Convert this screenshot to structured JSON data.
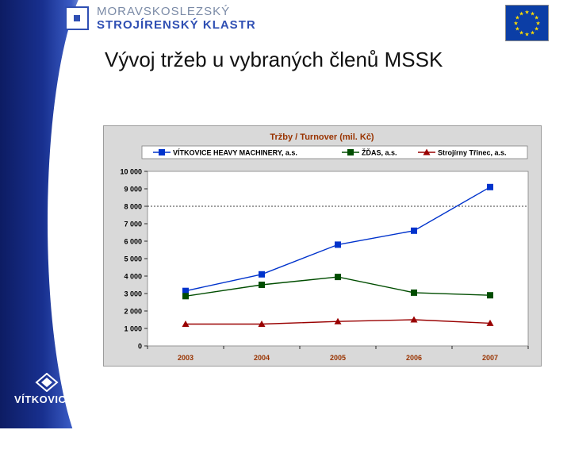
{
  "header": {
    "org_line1": "MORAVSKOSLEZSKÝ",
    "org_line2": "STROJÍRENSKÝ KLASTR",
    "logo_icon": "msk-square-logo-icon",
    "eu_flag_icon": "eu-flag-icon"
  },
  "slide": {
    "title": "Vývoj tržeb u vybraných členů MSSK"
  },
  "footer": {
    "company": "VÍTKOVICE",
    "emblem_icon": "vitkovice-emblem-icon"
  },
  "colors": {
    "series1": "#0033cc",
    "series2": "#004d00",
    "series3": "#990000",
    "plot_bg": "#ffffff",
    "frame_bg": "#d9d9d9",
    "chart_title": "#993300",
    "band_dark": "#0d1c63"
  },
  "chart_data": {
    "type": "line",
    "title": "Tržby / Turnover (mil. Kč)",
    "xlabel": "",
    "ylabel": "",
    "categories": [
      "2003",
      "2004",
      "2005",
      "2006",
      "2007"
    ],
    "ylim": [
      0,
      10000
    ],
    "y_ticks": [
      0,
      1000,
      2000,
      3000,
      4000,
      5000,
      6000,
      7000,
      8000,
      9000,
      10000
    ],
    "y_tick_labels": [
      "0",
      "1 000",
      "2 000",
      "3 000",
      "4 000",
      "5 000",
      "6 000",
      "7 000",
      "8 000",
      "9 000",
      "10 000"
    ],
    "reference_line": 8000,
    "grid": false,
    "legend_position": "top",
    "series": [
      {
        "name": "VÍTKOVICE HEAVY MACHINERY, a.s.",
        "marker": "square",
        "values": [
          3150,
          4100,
          5800,
          6600,
          9100
        ]
      },
      {
        "name": "ŽĎAS, a.s.",
        "marker": "square",
        "values": [
          2850,
          3500,
          3950,
          3050,
          2900
        ]
      },
      {
        "name": "Strojírny Třinec, a.s.",
        "marker": "triangle",
        "values": [
          1250,
          1250,
          1400,
          1500,
          1300
        ]
      }
    ]
  }
}
